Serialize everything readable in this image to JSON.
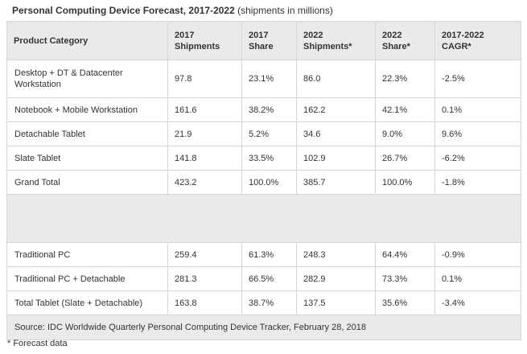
{
  "title": {
    "bold": "Personal Computing Device Forecast, 2017-2022",
    "normal": "(shipments in millions)"
  },
  "table": {
    "headers": [
      {
        "l1": "Product Category",
        "l2": ""
      },
      {
        "l1": "2017",
        "l2": "Shipments"
      },
      {
        "l1": "2017",
        "l2": "Share"
      },
      {
        "l1": "2022",
        "l2": "Shipments*"
      },
      {
        "l1": "2022",
        "l2": "Share*"
      },
      {
        "l1": "2017-2022",
        "l2": "CAGR*"
      }
    ],
    "rows": [
      [
        "Desktop + DT & Datacenter Workstation",
        "97.8",
        "23.1%",
        "86.0",
        "22.3%",
        "-2.5%"
      ],
      [
        "Notebook + Mobile Workstation",
        "161.6",
        "38.2%",
        "162.2",
        "42.1%",
        "0.1%"
      ],
      [
        "Detachable Tablet",
        "21.9",
        "5.2%",
        "34.6",
        "9.0%",
        "9.6%"
      ],
      [
        "Slate Tablet",
        "141.8",
        "33.5%",
        "102.9",
        "26.7%",
        "-6.2%"
      ],
      [
        "Grand Total",
        "423.2",
        "100.0%",
        "385.7",
        "100.0%",
        "-1.8%"
      ],
      [
        "Traditional PC",
        "259.4",
        "61.3%",
        "248.3",
        "64.4%",
        "-0.9%"
      ],
      [
        "Traditional PC + Detachable",
        "281.3",
        "66.5%",
        "282.9",
        "73.3%",
        "0.1%"
      ],
      [
        "Total Tablet (Slate + Detachable)",
        "163.8",
        "38.7%",
        "137.5",
        "35.6%",
        "-3.4%"
      ]
    ],
    "source": "Source: IDC Worldwide Quarterly Personal Computing Device Tracker, February 28, 2018"
  },
  "footnote": "* Forecast data",
  "colors": {
    "header_bg": "#eaeaea",
    "border": "#d6d6d6",
    "text": "#333333"
  }
}
